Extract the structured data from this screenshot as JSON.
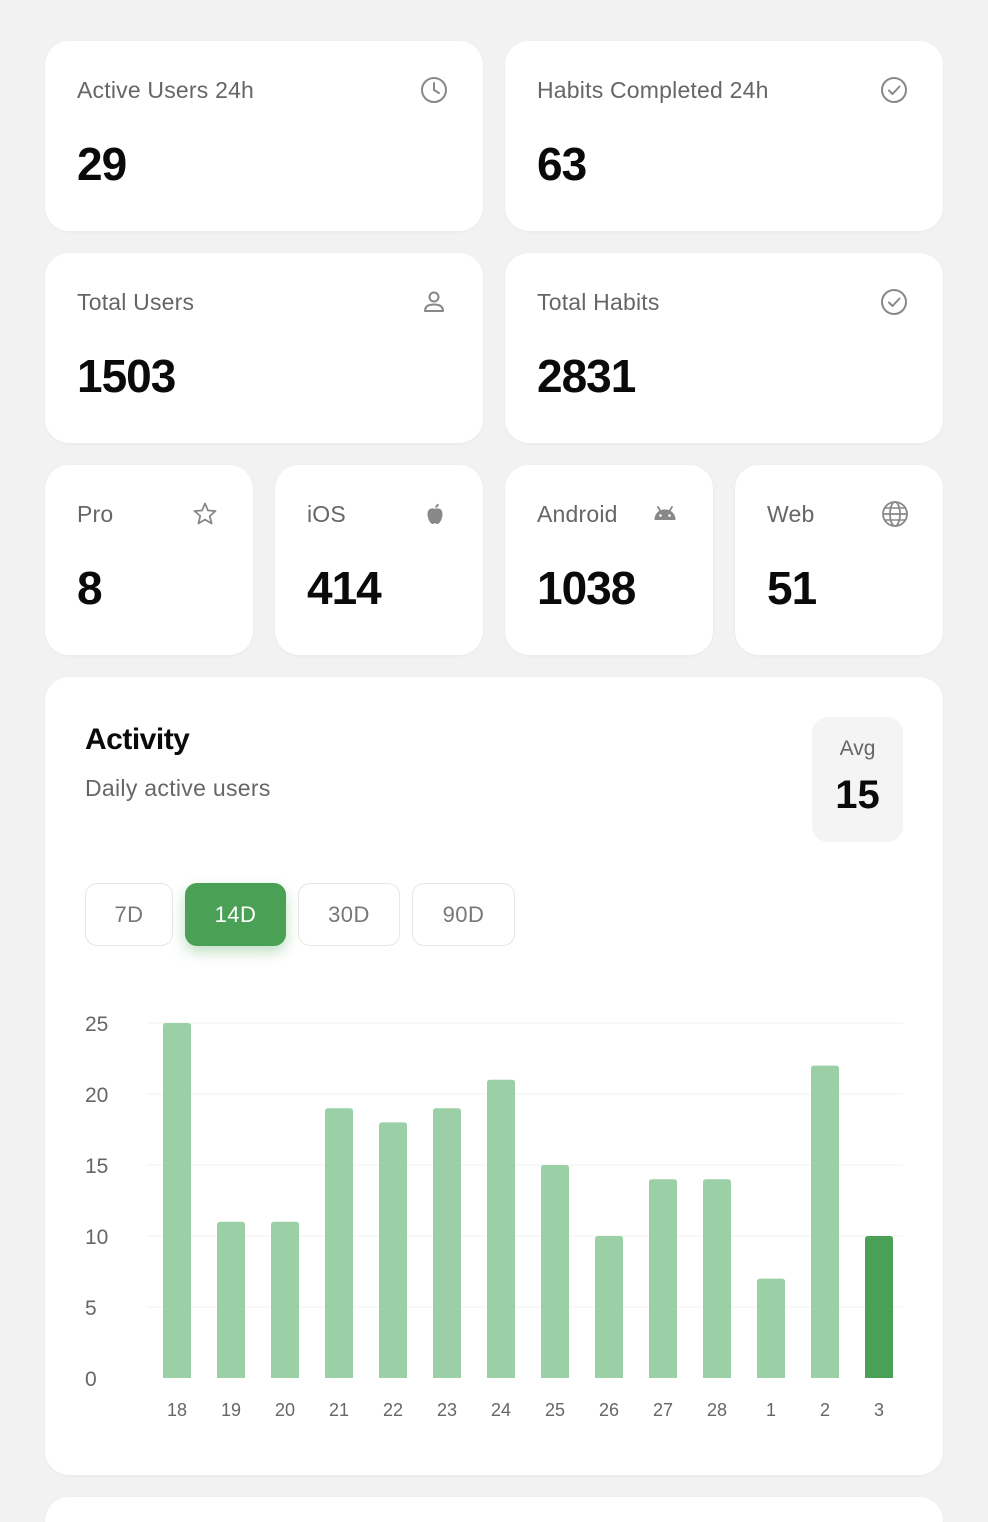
{
  "stats_top": [
    {
      "label": "Active Users 24h",
      "value": "29",
      "icon": "clock-icon"
    },
    {
      "label": "Habits Completed 24h",
      "value": "63",
      "icon": "check-circle-icon"
    }
  ],
  "stats_mid": [
    {
      "label": "Total Users",
      "value": "1503",
      "icon": "user-icon"
    },
    {
      "label": "Total Habits",
      "value": "2831",
      "icon": "check-circle-icon"
    }
  ],
  "stats_platform": [
    {
      "label": "Pro",
      "value": "8",
      "icon": "star-icon"
    },
    {
      "label": "iOS",
      "value": "414",
      "icon": "apple-icon"
    },
    {
      "label": "Android",
      "value": "1038",
      "icon": "android-icon"
    },
    {
      "label": "Web",
      "value": "51",
      "icon": "globe-icon"
    }
  ],
  "activity": {
    "title": "Activity",
    "subtitle": "Daily active users",
    "avg_label": "Avg",
    "avg_value": "15",
    "ranges": [
      "7D",
      "14D",
      "30D",
      "90D"
    ],
    "selected_range": "14D"
  },
  "colors": {
    "accent": "#4aa155",
    "bar": "#9bcfa5",
    "bar_current": "#4aa155",
    "muted_text": "#666666"
  },
  "chart_data": {
    "type": "bar",
    "categories": [
      "18",
      "19",
      "20",
      "21",
      "22",
      "23",
      "24",
      "25",
      "26",
      "27",
      "28",
      "1",
      "2",
      "3"
    ],
    "values": [
      25,
      11,
      11,
      19,
      18,
      19,
      21,
      15,
      10,
      14,
      14,
      7,
      22,
      10
    ],
    "highlight_last": true,
    "ylim": [
      0,
      25
    ],
    "yticks": [
      0,
      5,
      10,
      15,
      20,
      25
    ],
    "grid": true,
    "title": "",
    "xlabel": "",
    "ylabel": ""
  }
}
